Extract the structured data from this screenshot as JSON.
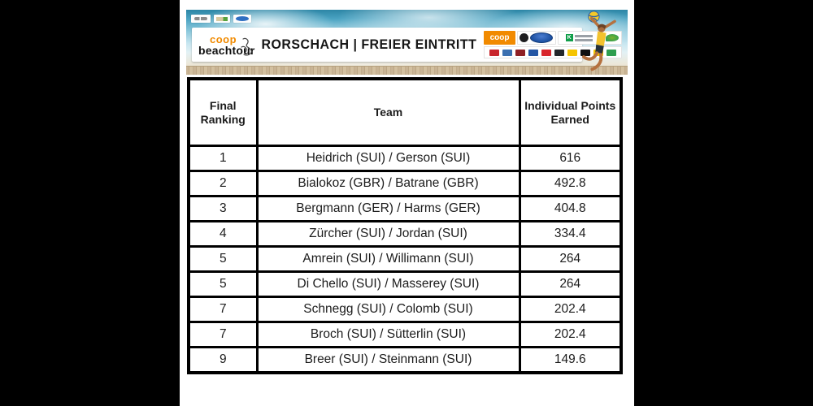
{
  "banner": {
    "logo_coop": "coop",
    "logo_beachtour": "beachtour",
    "title": "RORSCHACH | FREIER EINTRITT",
    "sponsor_coop": "coop",
    "bank_mark": "K",
    "sponsor_minor_colors": [
      "#c8252c",
      "#3a6fb0",
      "#8e1f24",
      "#2456a4",
      "#d8262c",
      "#22262a",
      "#f5c400",
      "#111111",
      "#f5c400",
      "#2e9e4f"
    ]
  },
  "table": {
    "headers": [
      "Final Ranking",
      "Team",
      "Individual Points Earned"
    ],
    "rows": [
      {
        "rank": "1",
        "team": "Heidrich (SUI) / Gerson (SUI)",
        "points": "616"
      },
      {
        "rank": "2",
        "team": "Bialokoz (GBR) / Batrane (GBR)",
        "points": "492.8"
      },
      {
        "rank": "3",
        "team": "Bergmann (GER) / Harms (GER)",
        "points": "404.8"
      },
      {
        "rank": "4",
        "team": "Zürcher (SUI) / Jordan (SUI)",
        "points": "334.4"
      },
      {
        "rank": "5",
        "team": "Amrein (SUI) / Willimann (SUI)",
        "points": "264"
      },
      {
        "rank": "5",
        "team": "Di Chello (SUI) / Masserey (SUI)",
        "points": "264"
      },
      {
        "rank": "7",
        "team": "Schnegg (SUI) / Colomb (SUI)",
        "points": "202.4"
      },
      {
        "rank": "7",
        "team": "Broch (SUI) / Sütterlin (SUI)",
        "points": "202.4"
      },
      {
        "rank": "9",
        "team": "Breer (SUI) / Steinmann (SUI)",
        "points": "149.6"
      }
    ]
  },
  "colors": {
    "accent_orange": "#f18a00",
    "sky_teal": "#3e9dbd",
    "sand": "#cdb897",
    "ford_blue": "#1b4fa0",
    "bank_green": "#0f9e49",
    "table_border": "#000000"
  }
}
